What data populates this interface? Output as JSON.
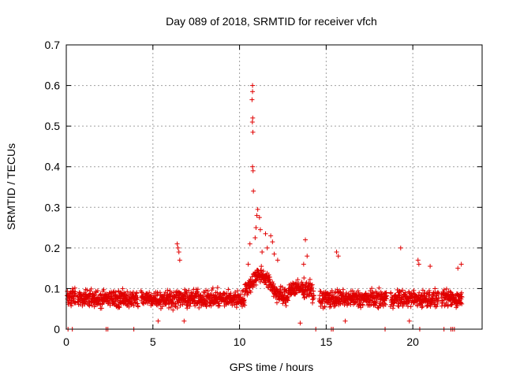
{
  "chart_data": {
    "type": "scatter",
    "title": "Day 089 of 2018, SRMTID for receiver vfch",
    "xlabel": "GPS time / hours",
    "ylabel": "SRMTID / TECUs",
    "xlim": [
      0,
      24
    ],
    "ylim": [
      0,
      0.7
    ],
    "x_ticks": [
      "0",
      "5",
      "10",
      "15",
      "20"
    ],
    "y_ticks": [
      "0",
      "0.1",
      "0.2",
      "0.3",
      "0.4",
      "0.5",
      "0.6",
      "0.7"
    ],
    "grid": true,
    "marker": "+",
    "color": "#e00000",
    "series": [
      {
        "name": "SRMTID",
        "baseline_mean": 0.075,
        "baseline_spread": 0.03,
        "note": "dense scatter of ~0.03–0.13 TECU from 0 to 22.8 h",
        "notable_points": [
          {
            "x": 10.75,
            "y": 0.6
          },
          {
            "x": 10.75,
            "y": 0.585
          },
          {
            "x": 10.72,
            "y": 0.565
          },
          {
            "x": 10.76,
            "y": 0.52
          },
          {
            "x": 10.74,
            "y": 0.51
          },
          {
            "x": 10.77,
            "y": 0.485
          },
          {
            "x": 10.75,
            "y": 0.4
          },
          {
            "x": 10.78,
            "y": 0.39
          },
          {
            "x": 10.8,
            "y": 0.34
          },
          {
            "x": 11.05,
            "y": 0.295
          },
          {
            "x": 11.0,
            "y": 0.28
          },
          {
            "x": 11.15,
            "y": 0.275
          },
          {
            "x": 10.95,
            "y": 0.25
          },
          {
            "x": 11.2,
            "y": 0.245
          },
          {
            "x": 11.5,
            "y": 0.235
          },
          {
            "x": 11.8,
            "y": 0.23
          },
          {
            "x": 11.9,
            "y": 0.215
          },
          {
            "x": 11.6,
            "y": 0.2
          },
          {
            "x": 10.9,
            "y": 0.225
          },
          {
            "x": 10.6,
            "y": 0.21
          },
          {
            "x": 11.3,
            "y": 0.19
          },
          {
            "x": 12.0,
            "y": 0.185
          },
          {
            "x": 10.5,
            "y": 0.16
          },
          {
            "x": 12.2,
            "y": 0.17
          },
          {
            "x": 13.8,
            "y": 0.22
          },
          {
            "x": 13.9,
            "y": 0.18
          },
          {
            "x": 13.7,
            "y": 0.16
          },
          {
            "x": 6.4,
            "y": 0.21
          },
          {
            "x": 6.45,
            "y": 0.2
          },
          {
            "x": 6.5,
            "y": 0.19
          },
          {
            "x": 6.55,
            "y": 0.17
          },
          {
            "x": 15.6,
            "y": 0.19
          },
          {
            "x": 15.7,
            "y": 0.18
          },
          {
            "x": 19.3,
            "y": 0.2
          },
          {
            "x": 20.3,
            "y": 0.17
          },
          {
            "x": 20.35,
            "y": 0.16
          },
          {
            "x": 22.8,
            "y": 0.16
          },
          {
            "x": 22.6,
            "y": 0.15
          },
          {
            "x": 21.0,
            "y": 0.155
          },
          {
            "x": 13.5,
            "y": 0.015
          },
          {
            "x": 16.1,
            "y": 0.02
          },
          {
            "x": 5.3,
            "y": 0.02
          },
          {
            "x": 6.8,
            "y": 0.02
          },
          {
            "x": 19.8,
            "y": 0.02
          }
        ],
        "zero_points_x": [
          0.1,
          0.35,
          2.3,
          2.4,
          3.9,
          14.4,
          15.3,
          15.4,
          18.4,
          20.4,
          21.8,
          22.2,
          22.3,
          22.4
        ]
      }
    ]
  }
}
